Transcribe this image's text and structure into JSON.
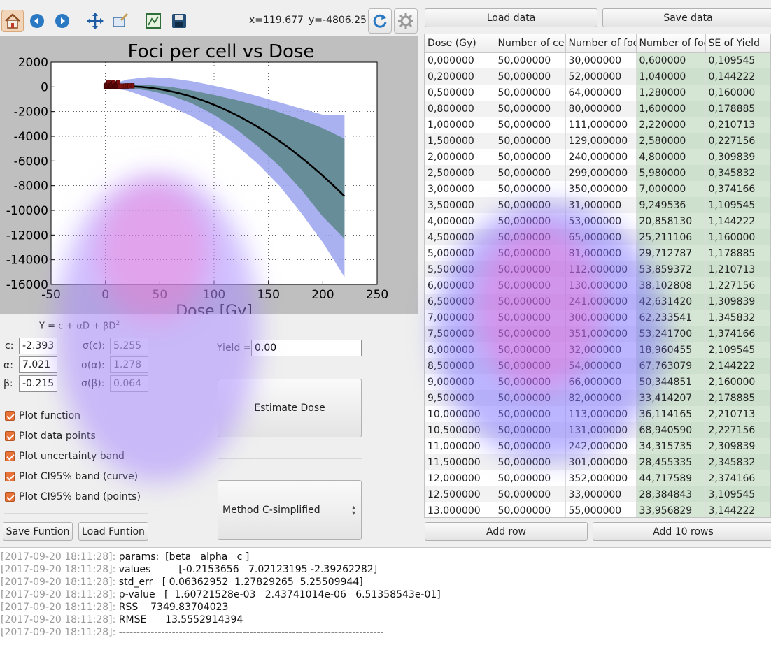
{
  "toolbar": {
    "coords": {
      "x": "x=119.677",
      "y": "y=-4806.25"
    },
    "buttons": [
      "home-icon",
      "back-icon",
      "forward-icon",
      "pan-icon",
      "zoom-icon",
      "subplots-icon",
      "save-figure-icon"
    ]
  },
  "colors": {
    "accent": "#e8733a",
    "band_outer": "#9aa3ee",
    "band_inner": "#5f8a8f",
    "curve": "#000000",
    "points": "#7a1010"
  },
  "plot": {
    "chart_data": {
      "type": "line",
      "title": "Foci per cell vs Dose",
      "xlabel": "Dose [Gy]",
      "ylabel": "",
      "xlim": [
        -50,
        250
      ],
      "ylim": [
        -16000,
        2000
      ],
      "xticks": [
        -50,
        0,
        50,
        100,
        150,
        200,
        250
      ],
      "yticks": [
        2000,
        0,
        -2000,
        -4000,
        -6000,
        -8000,
        -10000,
        -12000,
        -14000,
        -16000
      ],
      "grid": true,
      "model": {
        "c": -2.393,
        "alpha": 7.021,
        "beta": -0.215
      },
      "x_range": [
        0,
        220
      ],
      "series": [
        {
          "type": "line",
          "values": [
            [
              0,
              -2.39
            ],
            [
              20,
              50.4
            ],
            [
              40,
              -63.4
            ],
            [
              60,
              -354.6
            ],
            [
              80,
              -823.2
            ],
            [
              100,
              -1469.2
            ],
            [
              120,
              -2292.6
            ],
            [
              140,
              -3293.4
            ],
            [
              160,
              -4471.6
            ],
            [
              180,
              -5827.2
            ],
            [
              200,
              -7360.2
            ],
            [
              220,
              -9070.6
            ]
          ]
        },
        {
          "type": "band",
          "values": [
            [
              0,
              5,
              -10
            ],
            [
              20,
              200,
              -80
            ],
            [
              40,
              150,
              -300
            ],
            [
              60,
              0,
              -700
            ],
            [
              80,
              -300,
              -1350
            ],
            [
              100,
              -650,
              -2250
            ],
            [
              120,
              -1050,
              -3400
            ],
            [
              140,
              -1500,
              -4800
            ],
            [
              160,
              -2050,
              -6400
            ],
            [
              180,
              -2650,
              -8300
            ],
            [
              200,
              -3350,
              -10500
            ],
            [
              220,
              -4200,
              -12300
            ]
          ]
        },
        {
          "type": "band",
          "values": [
            [
              0,
              40,
              -40
            ],
            [
              20,
              600,
              -300
            ],
            [
              40,
              800,
              -900
            ],
            [
              60,
              700,
              -1600
            ],
            [
              80,
              450,
              -2400
            ],
            [
              100,
              100,
              -3400
            ],
            [
              120,
              -300,
              -4700
            ],
            [
              140,
              -750,
              -6200
            ],
            [
              160,
              -1250,
              -8000
            ],
            [
              180,
              -1750,
              -10200
            ],
            [
              200,
              -2250,
              -12600
            ],
            [
              220,
              -2300,
              -15400
            ]
          ]
        },
        {
          "type": "scatter",
          "values": [
            [
              0,
              30
            ],
            [
              0.2,
              52
            ],
            [
              0.5,
              64
            ],
            [
              0.8,
              80
            ],
            [
              1,
              111
            ],
            [
              1.5,
              129
            ],
            [
              2,
              240
            ],
            [
              2.5,
              299
            ],
            [
              3,
              350
            ],
            [
              3.5,
              31
            ],
            [
              4,
              53
            ],
            [
              4.5,
              65
            ],
            [
              5,
              81
            ],
            [
              5.5,
              112
            ],
            [
              6,
              130
            ],
            [
              6.5,
              241
            ],
            [
              7,
              300
            ],
            [
              7.5,
              351
            ],
            [
              8,
              32
            ],
            [
              8.5,
              54
            ],
            [
              9,
              66
            ],
            [
              9.5,
              82
            ],
            [
              10,
              113
            ],
            [
              10.5,
              131
            ],
            [
              11,
              242
            ],
            [
              11.5,
              301
            ],
            [
              12,
              352
            ],
            [
              12.5,
              33
            ],
            [
              13,
              55
            ],
            [
              15,
              60
            ],
            [
              18,
              70
            ],
            [
              20,
              75
            ],
            [
              22,
              80
            ],
            [
              25,
              85
            ]
          ]
        }
      ]
    }
  },
  "params": {
    "formula": "Y = c + αD + βD",
    "formula_sup": "2",
    "c_label": "c:",
    "c_value": "-2.393",
    "alpha_label": "α:",
    "alpha_value": "7.021",
    "beta_label": "β:",
    "beta_value": "-0.215",
    "sc_label": "σ(c):",
    "sc_value": "5.255",
    "sa_label": "σ(α):",
    "sa_value": "1.278",
    "sb_label": "σ(β):",
    "sb_value": "0.064",
    "yield_label": "Yield =",
    "yield_value": "0.00"
  },
  "checkboxes": [
    {
      "label": "Plot function",
      "checked": true
    },
    {
      "label": "Plot data points",
      "checked": true
    },
    {
      "label": "Plot uncertainty band",
      "checked": true
    },
    {
      "label": "Plot CI95% band (curve)",
      "checked": true
    },
    {
      "label": "Plot CI95% band (points)",
      "checked": true
    }
  ],
  "buttons": {
    "save_function": "Save Funtion",
    "load_function": "Load Funtion",
    "estimate_dose": "Estimate Dose",
    "method": "Method C-simplified",
    "load_data": "Load data",
    "save_data": "Save data",
    "add_row": "Add row",
    "add_10_rows": "Add 10 rows"
  },
  "table": {
    "columns": [
      "Dose (Gy)",
      "Number of cells",
      "Number of foci",
      "Number of foci/cell",
      "SE of Yield"
    ],
    "rows": [
      [
        "0,000000",
        "50,000000",
        "30,000000",
        "0,600000",
        "0,109545"
      ],
      [
        "0,200000",
        "50,000000",
        "52,000000",
        "1,040000",
        "0,144222"
      ],
      [
        "0,500000",
        "50,000000",
        "64,000000",
        "1,280000",
        "0,160000"
      ],
      [
        "0,800000",
        "50,000000",
        "80,000000",
        "1,600000",
        "0,178885"
      ],
      [
        "1,000000",
        "50,000000",
        "111,000000",
        "2,220000",
        "0,210713"
      ],
      [
        "1,500000",
        "50,000000",
        "129,000000",
        "2,580000",
        "0,227156"
      ],
      [
        "2,000000",
        "50,000000",
        "240,000000",
        "4,800000",
        "0,309839"
      ],
      [
        "2,500000",
        "50,000000",
        "299,000000",
        "5,980000",
        "0,345832"
      ],
      [
        "3,000000",
        "50,000000",
        "350,000000",
        "7,000000",
        "0,374166"
      ],
      [
        "3,500000",
        "50,000000",
        "31,000000",
        "9,249536",
        "1,109545"
      ],
      [
        "4,000000",
        "50,000000",
        "53,000000",
        "20,858130",
        "1,144222"
      ],
      [
        "4,500000",
        "50,000000",
        "65,000000",
        "25,211106",
        "1,160000"
      ],
      [
        "5,000000",
        "50,000000",
        "81,000000",
        "29,712787",
        "1,178885"
      ],
      [
        "5,500000",
        "50,000000",
        "112,000000",
        "53,859372",
        "1,210713"
      ],
      [
        "6,000000",
        "50,000000",
        "130,000000",
        "38,102808",
        "1,227156"
      ],
      [
        "6,500000",
        "50,000000",
        "241,000000",
        "42,631420",
        "1,309839"
      ],
      [
        "7,000000",
        "50,000000",
        "300,000000",
        "62,233541",
        "1,345832"
      ],
      [
        "7,500000",
        "50,000000",
        "351,000000",
        "53,241700",
        "1,374166"
      ],
      [
        "8,000000",
        "50,000000",
        "32,000000",
        "18,960455",
        "2,109545"
      ],
      [
        "8,500000",
        "50,000000",
        "54,000000",
        "67,763079",
        "2,144222"
      ],
      [
        "9,000000",
        "50,000000",
        "66,000000",
        "50,344851",
        "2,160000"
      ],
      [
        "9,500000",
        "50,000000",
        "82,000000",
        "33,414207",
        "2,178885"
      ],
      [
        "10,000000",
        "50,000000",
        "113,000000",
        "36,114165",
        "2,210713"
      ],
      [
        "10,500000",
        "50,000000",
        "131,000000",
        "68,940590",
        "2,227156"
      ],
      [
        "11,000000",
        "50,000000",
        "242,000000",
        "34,315735",
        "2,309839"
      ],
      [
        "11,500000",
        "50,000000",
        "301,000000",
        "28,455335",
        "2,345832"
      ],
      [
        "12,000000",
        "50,000000",
        "352,000000",
        "44,717589",
        "2,374166"
      ],
      [
        "12,500000",
        "50,000000",
        "33,000000",
        "28,384843",
        "3,109545"
      ],
      [
        "13,000000",
        "50,000000",
        "55,000000",
        "33,956829",
        "3,144222"
      ]
    ]
  },
  "log": [
    {
      "ts": "[2017-09-20 18:11:28]:",
      "msg": "params:  [beta   alpha   c ]"
    },
    {
      "ts": "[2017-09-20 18:11:28]:",
      "msg": "values         [-0.2153656   7.02123195 -2.39262282]"
    },
    {
      "ts": "[2017-09-20 18:11:28]:",
      "msg": "std_err   [ 0.06362952  1.27829265  5.25509944]"
    },
    {
      "ts": "[2017-09-20 18:11:28]:",
      "msg": "p-value   [  1.60721528e-03   2.43741014e-06   6.51358543e-01]"
    },
    {
      "ts": "[2017-09-20 18:11:28]:",
      "msg": "RSS    7349.83704023"
    },
    {
      "ts": "[2017-09-20 18:11:28]:",
      "msg": "RMSE      13.5552914394"
    },
    {
      "ts": "[2017-09-20 18:11:28]:",
      "msg": "---------------------------------------------------------------------------"
    }
  ]
}
